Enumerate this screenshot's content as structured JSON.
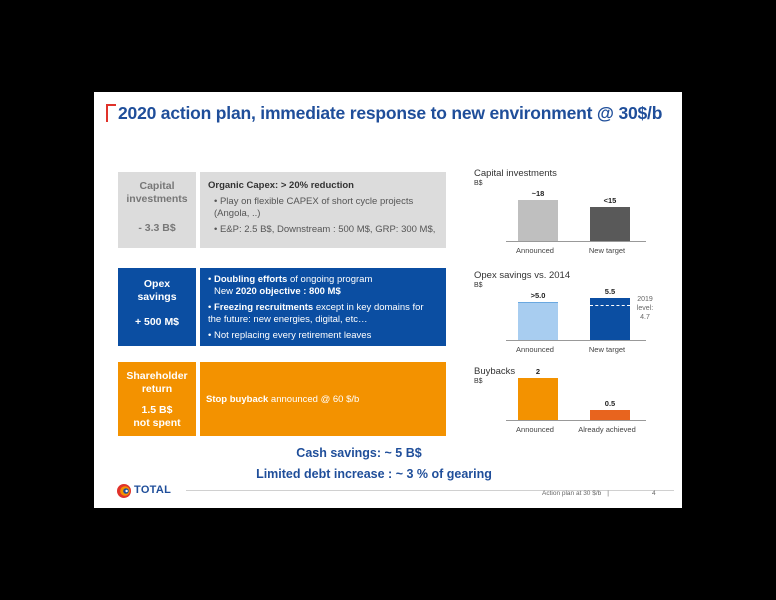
{
  "title": "2020 action plan, immediate response to new environment @ 30$/b",
  "rows": [
    {
      "label_lines": [
        "Capital",
        "investments"
      ],
      "amount": "- 3.3 B$",
      "heading": "Organic Capex: > 20% reduction",
      "bullet1": "• Play on flexible CAPEX of short cycle projects (Angola, ..)",
      "bullet2": "• E&P: 2.5 B$, Downstream : 500 M$, GRP: 300 M$,"
    },
    {
      "label_lines": [
        "Opex",
        "savings"
      ],
      "amount": "+ 500 M$",
      "b1_bold": "Doubling efforts",
      "b1_rest": " of ongoing program",
      "b1_line2_pre": "New ",
      "b1_line2_bold": "2020 objective : 800 M$",
      "b2_bold": "Freezing recruitments",
      "b2_rest": " except in key domains for the future: new energies, digital, etc…",
      "b3": "Not replacing every retirement leaves"
    },
    {
      "label_lines": [
        "Shareholder",
        "return"
      ],
      "amount_lines": [
        "1.5 B$",
        "not spent"
      ],
      "text_bold": "Stop buyback",
      "text_rest": " announced @ 60 $/b"
    }
  ],
  "cash_savings": "Cash savings: ~ 5 B$",
  "debt": "Limited debt increase : ~ 3 % of gearing",
  "logo": "TOTAL",
  "footer": {
    "text": "Action plan at 30 $/b",
    "sep": "|",
    "page": "4"
  },
  "chart_data": [
    {
      "type": "bar",
      "title": "Capital investments",
      "ylabel": "B$",
      "categories": [
        "Announced",
        "New target"
      ],
      "values": [
        18,
        15
      ],
      "labels": [
        "~18",
        "<15"
      ],
      "colors": [
        "#bfbfbf",
        "#595959"
      ]
    },
    {
      "type": "bar",
      "title": "Opex savings vs. 2014",
      "ylabel": "B$",
      "categories": [
        "Announced",
        "New target"
      ],
      "values": [
        5.0,
        5.5
      ],
      "labels": [
        ">5.0",
        "5.5"
      ],
      "colors": [
        "#a8cdf0",
        "#0b4ea2"
      ],
      "annotation": [
        "2019",
        "level:",
        "4.7"
      ]
    },
    {
      "type": "bar",
      "title": "Buybacks",
      "ylabel": "B$",
      "categories": [
        "Announced",
        "Already achieved"
      ],
      "values": [
        2,
        0.5
      ],
      "labels": [
        "2",
        "0.5"
      ],
      "colors": [
        "#f39200",
        "#e8641e"
      ]
    }
  ]
}
